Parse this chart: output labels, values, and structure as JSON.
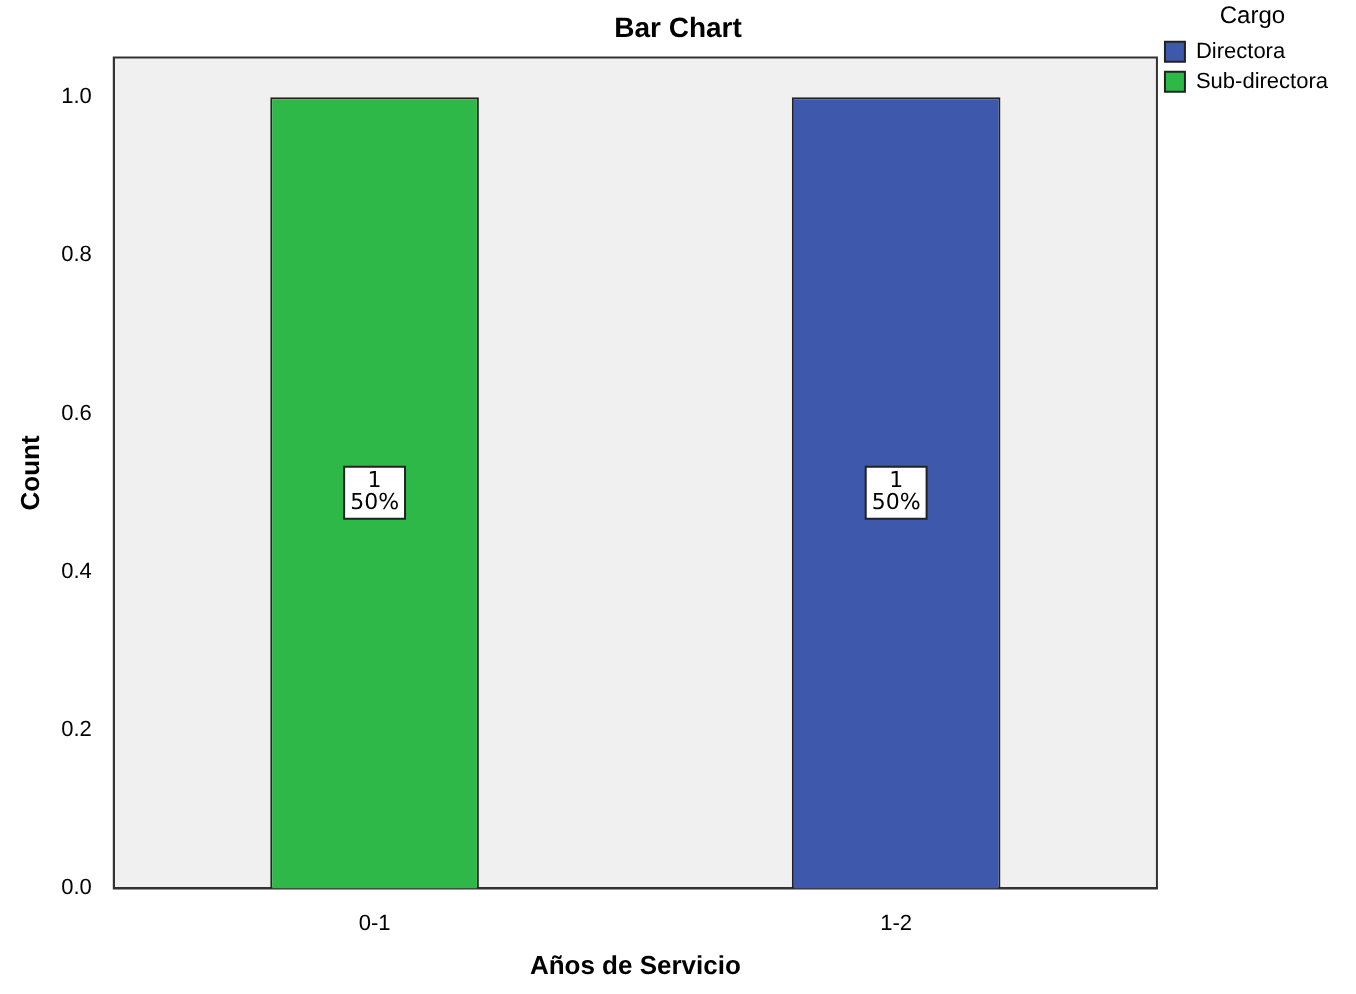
{
  "chart_data": {
    "type": "bar",
    "title": "Bar Chart",
    "xlabel": "Años de Servicio",
    "ylabel": "Count",
    "legend_title": "Cargo",
    "categories": [
      "0-1",
      "1-2"
    ],
    "series": [
      {
        "name": "Directora",
        "color": "#3e58ac",
        "values": [
          null,
          1
        ],
        "value_labels": [
          null,
          "1\n50%"
        ]
      },
      {
        "name": "Sub-directora",
        "color": "#2eb848",
        "values": [
          1,
          null
        ],
        "value_labels": [
          "1\n50%",
          null
        ]
      }
    ],
    "ylim": [
      0,
      1.05
    ],
    "yticks": [
      {
        "value": 0,
        "label": "0.0"
      },
      {
        "value": 0.2,
        "label": "0.2"
      },
      {
        "value": 0.4,
        "label": "0.4"
      },
      {
        "value": 0.6,
        "label": "0.6"
      },
      {
        "value": 0.8,
        "label": "0.8"
      },
      {
        "value": 1,
        "label": "1.0"
      }
    ],
    "grid": false,
    "legend": "top right"
  }
}
